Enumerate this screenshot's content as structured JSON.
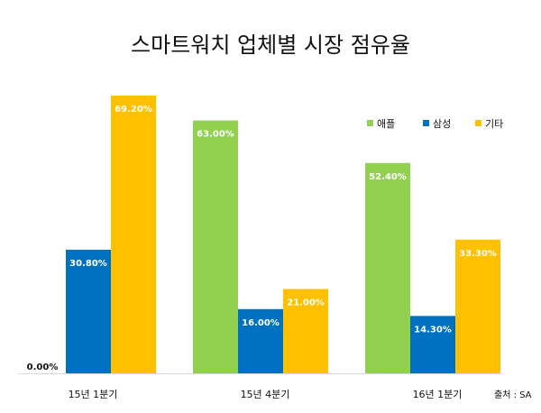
{
  "chart_data": {
    "type": "bar",
    "title": "스마트워치 업체별 시장 점유율",
    "categories": [
      "15년 1분기",
      "15년 4분기",
      "16년 1분기"
    ],
    "series": [
      {
        "name": "애플",
        "color": "#92D050",
        "values": [
          0.0,
          63.0,
          52.4
        ],
        "labels": [
          "0.00%",
          "63.00%",
          "52.40%"
        ]
      },
      {
        "name": "삼성",
        "color": "#0070C0",
        "values": [
          30.8,
          16.0,
          14.3
        ],
        "labels": [
          "30.80%",
          "16.00%",
          "14.30%"
        ]
      },
      {
        "name": "기타",
        "color": "#FFC000",
        "values": [
          69.2,
          21.0,
          33.3
        ],
        "labels": [
          "69.20%",
          "21.00%",
          "33.30%"
        ]
      }
    ],
    "ylim": [
      0,
      69.2
    ],
    "legend_position": "top-right",
    "grid": false,
    "source": "출처 : SA"
  }
}
